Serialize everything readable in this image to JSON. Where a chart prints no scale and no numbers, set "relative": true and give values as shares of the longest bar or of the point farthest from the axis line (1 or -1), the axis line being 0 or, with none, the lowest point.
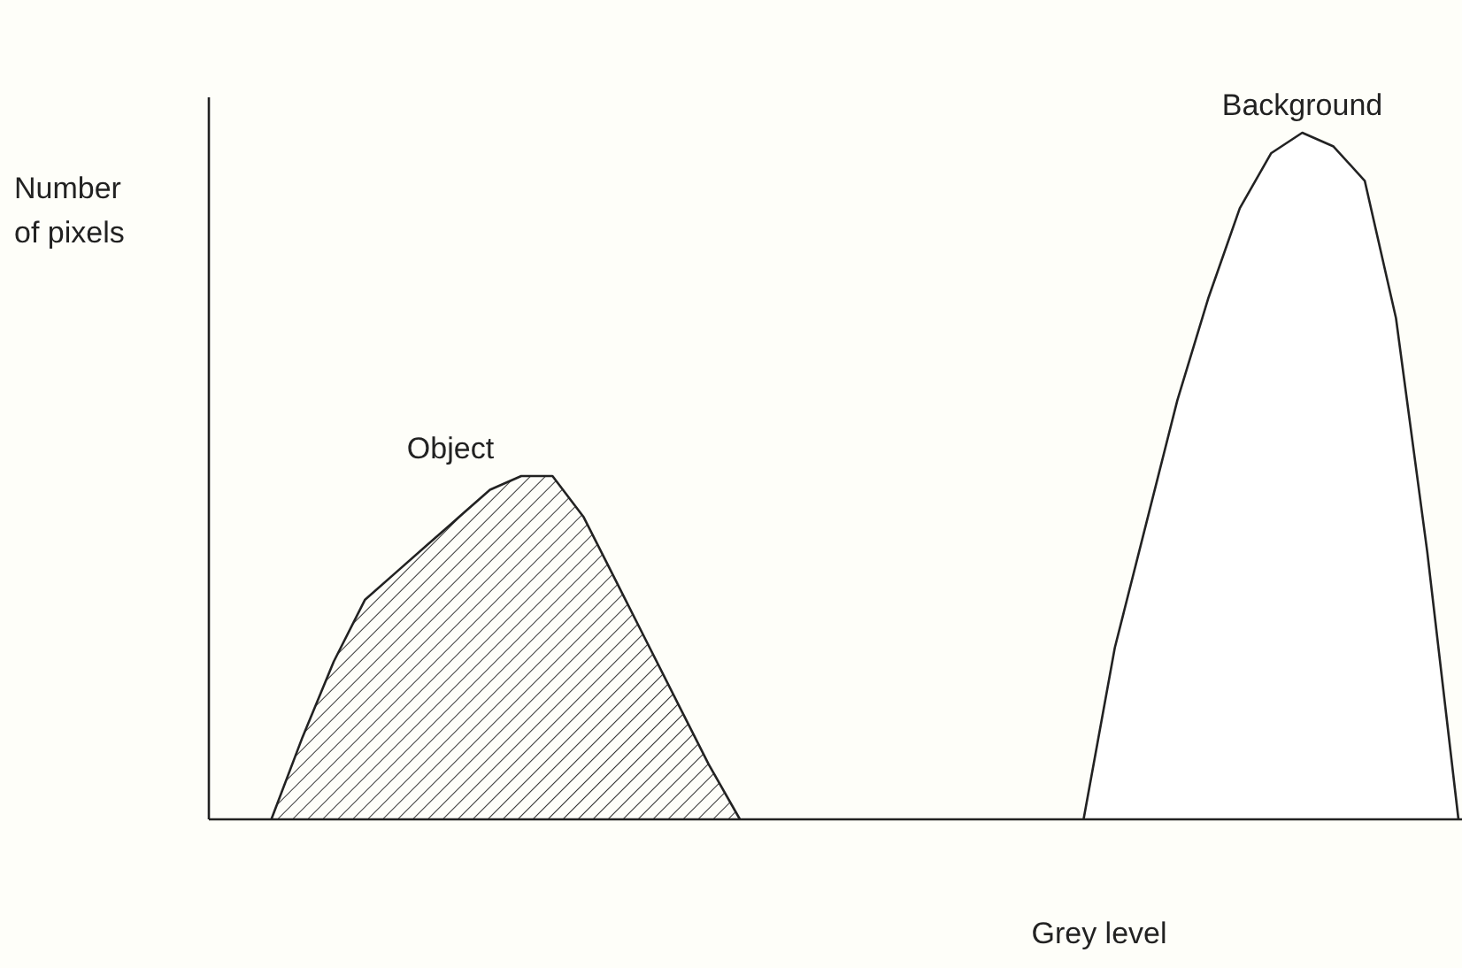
{
  "chart_data": {
    "type": "area",
    "relative": true,
    "xlabel": "Grey level",
    "ylabel": "Number of pixels",
    "categories": [
      null,
      null,
      null,
      null,
      null,
      null,
      null,
      null,
      null,
      null,
      null,
      null,
      null,
      null,
      null,
      null,
      null,
      null,
      null,
      null,
      null,
      null,
      null,
      null,
      null,
      null,
      null,
      null,
      null,
      null,
      null,
      null,
      null,
      null,
      null,
      null,
      null,
      null,
      null,
      null,
      null
    ],
    "series": [
      {
        "name": "Object",
        "color": "#222222",
        "values": [
          null,
          null,
          0,
          0.12,
          0.23,
          0.32,
          0.36,
          0.4,
          0.44,
          0.48,
          0.5,
          0.5,
          0.44,
          0.35,
          0.26,
          0.17,
          0.08,
          0,
          null,
          null,
          null,
          null,
          null,
          null,
          null,
          null,
          null,
          null,
          null,
          null,
          null,
          null,
          null,
          null,
          null,
          null,
          null,
          null,
          null,
          null,
          null
        ]
      },
      {
        "name": "Background",
        "color": "#222222",
        "values": [
          null,
          null,
          null,
          null,
          null,
          null,
          null,
          null,
          null,
          null,
          null,
          null,
          null,
          null,
          null,
          null,
          null,
          null,
          null,
          null,
          null,
          null,
          null,
          null,
          null,
          null,
          null,
          null,
          0,
          0.25,
          0.43,
          0.61,
          0.76,
          0.89,
          0.97,
          1,
          0.98,
          0.93,
          0.73,
          0.39,
          0
        ]
      }
    ]
  }
}
